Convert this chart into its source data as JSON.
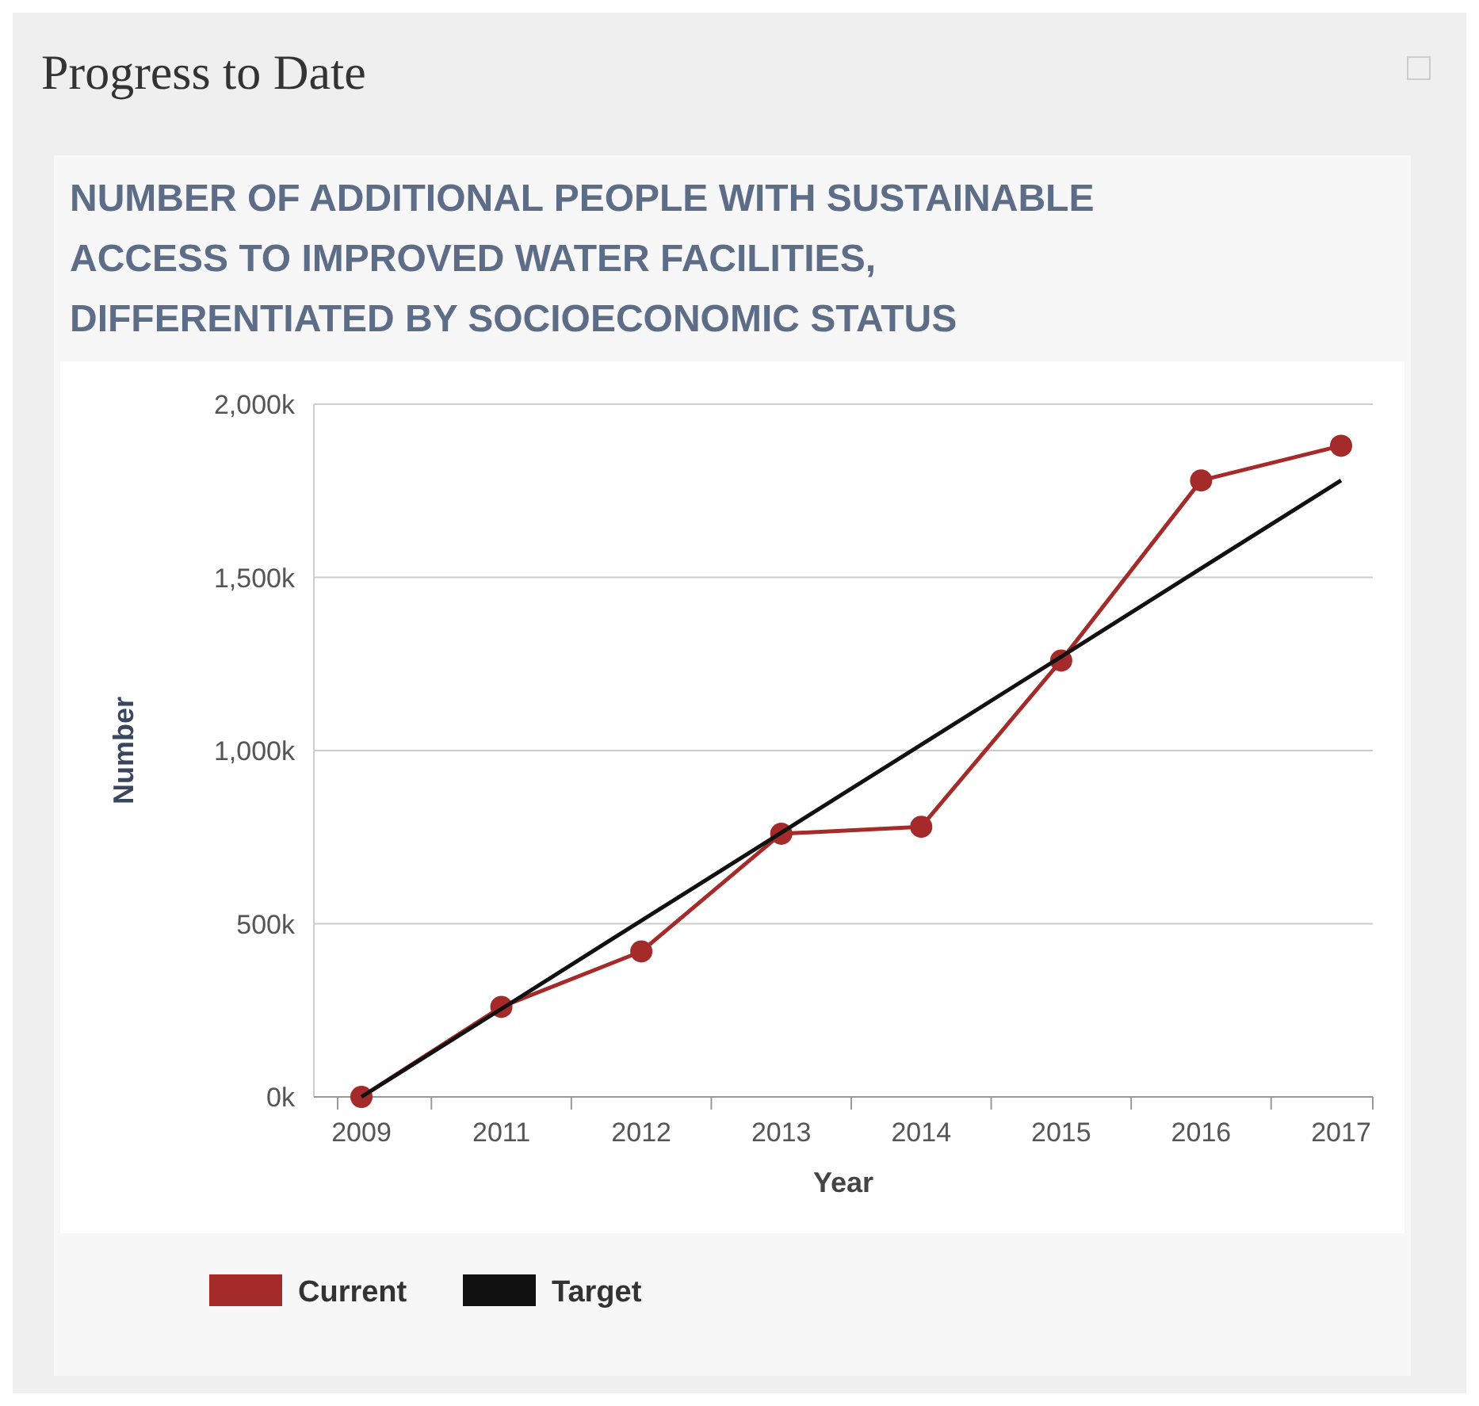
{
  "chart_data": {
    "type": "line",
    "title": "Progress to Date",
    "subtitle": "NUMBER OF ADDITIONAL PEOPLE WITH SUSTAINABLE ACCESS TO IMPROVED WATER FACILITIES, DIFFERENTIATED BY SOCIOECONOMIC STATUS",
    "xlabel": "Year",
    "ylabel": "Number",
    "categories": [
      "2009",
      "2011",
      "2012",
      "2013",
      "2014",
      "2015",
      "2016",
      "2017"
    ],
    "series": [
      {
        "name": "Current",
        "color": "#a52a2a",
        "marker": "circle",
        "values": [
          0,
          260,
          420,
          760,
          780,
          1260,
          1780,
          1880
        ]
      },
      {
        "name": "Target",
        "color": "#111111",
        "marker": "none",
        "values": [
          0,
          254,
          509,
          763,
          1017,
          1271,
          1526,
          1780
        ]
      }
    ],
    "ylim": [
      0,
      2000
    ],
    "yticks": [
      {
        "value": 0,
        "label": "0k"
      },
      {
        "value": 500,
        "label": "500k"
      },
      {
        "value": 1000,
        "label": "1,000k"
      },
      {
        "value": 1500,
        "label": "1,500k"
      },
      {
        "value": 2000,
        "label": "2,000k"
      }
    ],
    "grid": "y",
    "legend": "bottom left",
    "line_style": "solid"
  }
}
